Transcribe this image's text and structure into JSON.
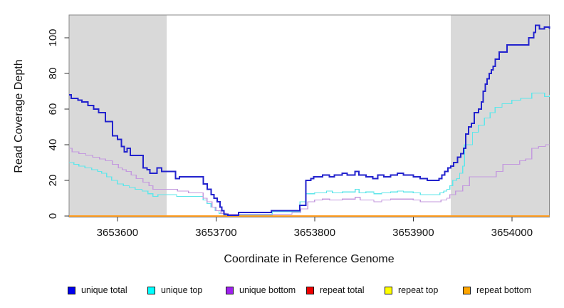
{
  "chart_data": {
    "type": "line",
    "subtype": "step-after",
    "title": "",
    "xlabel": "Coordinate in Reference Genome",
    "ylabel": "Read Coverage Depth",
    "xlim": [
      3653551,
      3654038
    ],
    "ylim": [
      0,
      113
    ],
    "x_ticks": [
      3653600,
      3653700,
      3653800,
      3653900,
      3654000
    ],
    "y_ticks": [
      0,
      20,
      40,
      60,
      80,
      100
    ],
    "grid": false,
    "legend_position": "bottom",
    "background_color": "#ffffff",
    "box_color": "#898989",
    "tick_color": "#333333",
    "shaded_regions": [
      {
        "x0": 3653551,
        "x1": 3653650,
        "color": "#d9d9d9"
      },
      {
        "x0": 3653938,
        "x1": 3654038,
        "color": "#d9d9d9"
      }
    ],
    "baseline_note": "repeat total, repeat top and repeat bottom all lie flat at 0 across the full x range; orange (repeat bottom) is drawn on top",
    "series": [
      {
        "name": "unique total",
        "color": "#0000ee",
        "line_color": "#2222cd",
        "line_width": 2,
        "points": [
          [
            3653551,
            68
          ],
          [
            3653553,
            66
          ],
          [
            3653560,
            65
          ],
          [
            3653564,
            64
          ],
          [
            3653570,
            62
          ],
          [
            3653576,
            60
          ],
          [
            3653581,
            58
          ],
          [
            3653588,
            53
          ],
          [
            3653595,
            45
          ],
          [
            3653600,
            43
          ],
          [
            3653604,
            39
          ],
          [
            3653607,
            36
          ],
          [
            3653610,
            38
          ],
          [
            3653613,
            34
          ],
          [
            3653626,
            27
          ],
          [
            3653630,
            26
          ],
          [
            3653633,
            24
          ],
          [
            3653640,
            27
          ],
          [
            3653645,
            25
          ],
          [
            3653659,
            21
          ],
          [
            3653663,
            22
          ],
          [
            3653687,
            18
          ],
          [
            3653691,
            15
          ],
          [
            3653695,
            12
          ],
          [
            3653698,
            10
          ],
          [
            3653701,
            8
          ],
          [
            3653704,
            5
          ],
          [
            3653706,
            3
          ],
          [
            3653708,
            1
          ],
          [
            3653712,
            0.5
          ],
          [
            3653723,
            2
          ],
          [
            3653756,
            3
          ],
          [
            3653785,
            6
          ],
          [
            3653791,
            20
          ],
          [
            3653796,
            21
          ],
          [
            3653799,
            22
          ],
          [
            3653808,
            23
          ],
          [
            3653815,
            22
          ],
          [
            3653820,
            23
          ],
          [
            3653828,
            24
          ],
          [
            3653833,
            23
          ],
          [
            3653841,
            25
          ],
          [
            3653845,
            23
          ],
          [
            3653852,
            22
          ],
          [
            3653859,
            21
          ],
          [
            3653864,
            23
          ],
          [
            3653870,
            22
          ],
          [
            3653877,
            23
          ],
          [
            3653884,
            24
          ],
          [
            3653890,
            23
          ],
          [
            3653900,
            22
          ],
          [
            3653907,
            21
          ],
          [
            3653914,
            20
          ],
          [
            3653926,
            21
          ],
          [
            3653929,
            23
          ],
          [
            3653932,
            25
          ],
          [
            3653935,
            27
          ],
          [
            3653938,
            28
          ],
          [
            3653941,
            30
          ],
          [
            3653945,
            33
          ],
          [
            3653948,
            35
          ],
          [
            3653951,
            38
          ],
          [
            3653953,
            46
          ],
          [
            3653956,
            50
          ],
          [
            3653959,
            52
          ],
          [
            3653962,
            58
          ],
          [
            3653966,
            60
          ],
          [
            3653969,
            64
          ],
          [
            3653971,
            70
          ],
          [
            3653973,
            74
          ],
          [
            3653975,
            77
          ],
          [
            3653977,
            80
          ],
          [
            3653979,
            82
          ],
          [
            3653981,
            84
          ],
          [
            3653983,
            88
          ],
          [
            3653987,
            92
          ],
          [
            3653995,
            96
          ],
          [
            3654017,
            100
          ],
          [
            3654022,
            103
          ],
          [
            3654024,
            107
          ],
          [
            3654028,
            105
          ],
          [
            3654033,
            106
          ],
          [
            3654038,
            105
          ]
        ]
      },
      {
        "name": "unique top",
        "color": "#00ffff",
        "line_color": "#5fe6ea",
        "line_width": 1.4,
        "points": [
          [
            3653551,
            30
          ],
          [
            3653556,
            29
          ],
          [
            3653561,
            28
          ],
          [
            3653567,
            27
          ],
          [
            3653574,
            26
          ],
          [
            3653580,
            25
          ],
          [
            3653584,
            24
          ],
          [
            3653589,
            22
          ],
          [
            3653594,
            20
          ],
          [
            3653600,
            18
          ],
          [
            3653606,
            17
          ],
          [
            3653612,
            16
          ],
          [
            3653618,
            15
          ],
          [
            3653625,
            14
          ],
          [
            3653631,
            12.5
          ],
          [
            3653636,
            11
          ],
          [
            3653641,
            12
          ],
          [
            3653660,
            11
          ],
          [
            3653687,
            9
          ],
          [
            3653691,
            7
          ],
          [
            3653695,
            5
          ],
          [
            3653699,
            3
          ],
          [
            3653703,
            1.5
          ],
          [
            3653708,
            0.6
          ],
          [
            3653757,
            2.4
          ],
          [
            3653785,
            8
          ],
          [
            3653791,
            12.5
          ],
          [
            3653800,
            13
          ],
          [
            3653812,
            14
          ],
          [
            3653818,
            13
          ],
          [
            3653828,
            13.5
          ],
          [
            3653841,
            15
          ],
          [
            3653845,
            13
          ],
          [
            3653852,
            13.5
          ],
          [
            3653860,
            12.5
          ],
          [
            3653868,
            13
          ],
          [
            3653877,
            13.5
          ],
          [
            3653884,
            14
          ],
          [
            3653890,
            13.5
          ],
          [
            3653900,
            13
          ],
          [
            3653907,
            12
          ],
          [
            3653920,
            12
          ],
          [
            3653927,
            13
          ],
          [
            3653931,
            14
          ],
          [
            3653934,
            15
          ],
          [
            3653937,
            17
          ],
          [
            3653940,
            20
          ],
          [
            3653944,
            21
          ],
          [
            3653947,
            24
          ],
          [
            3653950,
            28
          ],
          [
            3653952,
            40
          ],
          [
            3653960,
            47
          ],
          [
            3653966,
            51
          ],
          [
            3653972,
            55
          ],
          [
            3653978,
            58
          ],
          [
            3653983,
            61
          ],
          [
            3653990,
            63
          ],
          [
            3654000,
            65
          ],
          [
            3654009,
            66
          ],
          [
            3654020,
            69
          ],
          [
            3654030,
            69
          ],
          [
            3654033,
            67
          ],
          [
            3654038,
            68
          ]
        ]
      },
      {
        "name": "unique bottom",
        "color": "#a020f0",
        "line_color": "#c49ade",
        "line_width": 1.4,
        "points": [
          [
            3653551,
            38
          ],
          [
            3653554,
            36
          ],
          [
            3653561,
            35
          ],
          [
            3653568,
            34
          ],
          [
            3653575,
            33
          ],
          [
            3653582,
            32
          ],
          [
            3653588,
            31
          ],
          [
            3653595,
            29
          ],
          [
            3653601,
            27
          ],
          [
            3653605,
            26
          ],
          [
            3653609,
            25
          ],
          [
            3653614,
            23
          ],
          [
            3653619,
            21
          ],
          [
            3653626,
            19
          ],
          [
            3653632,
            17
          ],
          [
            3653636,
            15
          ],
          [
            3653661,
            14
          ],
          [
            3653672,
            13
          ],
          [
            3653687,
            10
          ],
          [
            3653691,
            8
          ],
          [
            3653696,
            5
          ],
          [
            3653700,
            3
          ],
          [
            3653705,
            1.5
          ],
          [
            3653710,
            1
          ],
          [
            3653777,
            2
          ],
          [
            3653786,
            4
          ],
          [
            3653793,
            8
          ],
          [
            3653800,
            9
          ],
          [
            3653808,
            9.5
          ],
          [
            3653815,
            9
          ],
          [
            3653828,
            9.5
          ],
          [
            3653841,
            10.5
          ],
          [
            3653846,
            9
          ],
          [
            3653860,
            8
          ],
          [
            3653868,
            9
          ],
          [
            3653877,
            9.5
          ],
          [
            3653884,
            9.5
          ],
          [
            3653900,
            9
          ],
          [
            3653907,
            8
          ],
          [
            3653922,
            8
          ],
          [
            3653928,
            9
          ],
          [
            3653934,
            10
          ],
          [
            3653937,
            12
          ],
          [
            3653943,
            14
          ],
          [
            3653950,
            17
          ],
          [
            3653957,
            22
          ],
          [
            3653977,
            22
          ],
          [
            3653984,
            25
          ],
          [
            3653991,
            29
          ],
          [
            3654008,
            31
          ],
          [
            3654014,
            32
          ],
          [
            3654020,
            38
          ],
          [
            3654027,
            39
          ],
          [
            3654034,
            40
          ],
          [
            3654038,
            40
          ]
        ]
      },
      {
        "name": "repeat total",
        "color": "#ee0000",
        "line_color": "#ee0000",
        "line_width": 1.5,
        "points": [
          [
            3653551,
            0
          ],
          [
            3654038,
            0
          ]
        ]
      },
      {
        "name": "repeat top",
        "color": "#ffff00",
        "line_color": "#ffff00",
        "line_width": 1.5,
        "points": [
          [
            3653551,
            0
          ],
          [
            3654038,
            0
          ]
        ]
      },
      {
        "name": "repeat bottom",
        "color": "#ffa500",
        "line_color": "#ff9d20",
        "line_width": 2,
        "points": [
          [
            3653551,
            0
          ],
          [
            3654038,
            0
          ]
        ]
      }
    ]
  }
}
